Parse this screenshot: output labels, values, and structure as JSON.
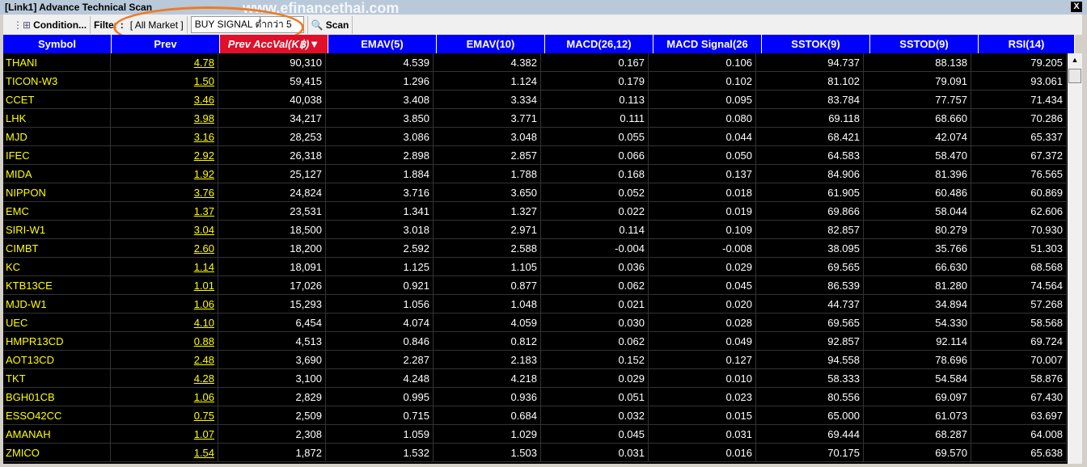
{
  "window": {
    "title": "[Link1] Advance Technical Scan",
    "close_label": "X",
    "watermark": "www.efinancethai.com"
  },
  "toolbar": {
    "condition_label": "Condition...",
    "filter_label": "Filter :",
    "market": "[ All Market ]",
    "signal": "BUY SIGNAL ต่ำกว่า 5",
    "scan_label": "Scan"
  },
  "accent": {
    "header": "#0000ff",
    "sorted_header": "#e0102a",
    "symbol": "#ffff00",
    "highlight": "#f07a22"
  },
  "columns": [
    "Symbol",
    "Prev",
    "Prev AccVal(K฿)▼",
    "EMAV(5)",
    "EMAV(10)",
    "MACD(26,12)",
    "MACD Signal(26",
    "SSTOK(9)",
    "SSTOD(9)",
    "RSI(14)"
  ],
  "rows": [
    [
      "THANI",
      "4.78",
      "90,310",
      "4.539",
      "4.382",
      "0.167",
      "0.106",
      "94.737",
      "88.138",
      "79.205"
    ],
    [
      "TICON-W3",
      "1.50",
      "59,415",
      "1.296",
      "1.124",
      "0.179",
      "0.102",
      "81.102",
      "79.091",
      "93.061"
    ],
    [
      "CCET",
      "3.46",
      "40,038",
      "3.408",
      "3.334",
      "0.113",
      "0.095",
      "83.784",
      "77.757",
      "71.434"
    ],
    [
      "LHK",
      "3.98",
      "34,217",
      "3.850",
      "3.771",
      "0.111",
      "0.080",
      "69.118",
      "68.660",
      "70.286"
    ],
    [
      "MJD",
      "3.16",
      "28,253",
      "3.086",
      "3.048",
      "0.055",
      "0.044",
      "68.421",
      "42.074",
      "65.337"
    ],
    [
      "IFEC",
      "2.92",
      "26,318",
      "2.898",
      "2.857",
      "0.066",
      "0.050",
      "64.583",
      "58.470",
      "67.372"
    ],
    [
      "MIDA",
      "1.92",
      "25,127",
      "1.884",
      "1.788",
      "0.168",
      "0.137",
      "84.906",
      "81.396",
      "76.565"
    ],
    [
      "NIPPON",
      "3.76",
      "24,824",
      "3.716",
      "3.650",
      "0.052",
      "0.018",
      "61.905",
      "60.486",
      "60.869"
    ],
    [
      "EMC",
      "1.37",
      "23,531",
      "1.341",
      "1.327",
      "0.022",
      "0.019",
      "69.866",
      "58.044",
      "62.606"
    ],
    [
      "SIRI-W1",
      "3.04",
      "18,500",
      "3.018",
      "2.971",
      "0.114",
      "0.109",
      "82.857",
      "80.279",
      "70.930"
    ],
    [
      "CIMBT",
      "2.60",
      "18,200",
      "2.592",
      "2.588",
      "-0.004",
      "-0.008",
      "38.095",
      "35.766",
      "51.303"
    ],
    [
      "KC",
      "1.14",
      "18,091",
      "1.125",
      "1.105",
      "0.036",
      "0.029",
      "69.565",
      "66.630",
      "68.568"
    ],
    [
      "KTB13CE",
      "1.01",
      "17,026",
      "0.921",
      "0.877",
      "0.062",
      "0.045",
      "86.539",
      "81.280",
      "74.564"
    ],
    [
      "MJD-W1",
      "1.06",
      "15,293",
      "1.056",
      "1.048",
      "0.021",
      "0.020",
      "44.737",
      "34.894",
      "57.268"
    ],
    [
      "UEC",
      "4.10",
      "6,454",
      "4.074",
      "4.059",
      "0.030",
      "0.028",
      "69.565",
      "54.330",
      "58.568"
    ],
    [
      "HMPR13CD",
      "0.88",
      "4,513",
      "0.846",
      "0.812",
      "0.062",
      "0.049",
      "92.857",
      "92.114",
      "69.724"
    ],
    [
      "AOT13CD",
      "2.48",
      "3,690",
      "2.287",
      "2.183",
      "0.152",
      "0.127",
      "94.558",
      "78.696",
      "70.007"
    ],
    [
      "TKT",
      "4.28",
      "3,100",
      "4.248",
      "4.218",
      "0.029",
      "0.010",
      "58.333",
      "54.584",
      "58.876"
    ],
    [
      "BGH01CB",
      "1.06",
      "2,829",
      "0.995",
      "0.936",
      "0.051",
      "0.023",
      "80.556",
      "69.097",
      "67.430"
    ],
    [
      "ESSO42CC",
      "0.75",
      "2,509",
      "0.715",
      "0.684",
      "0.032",
      "0.015",
      "65.000",
      "61.073",
      "63.697"
    ],
    [
      "AMANAH",
      "1.07",
      "2,308",
      "1.059",
      "1.029",
      "0.045",
      "0.031",
      "69.444",
      "68.287",
      "64.008"
    ],
    [
      "ZMICO",
      "1.54",
      "1,872",
      "1.532",
      "1.503",
      "0.031",
      "0.016",
      "70.175",
      "69.570",
      "65.638"
    ]
  ]
}
